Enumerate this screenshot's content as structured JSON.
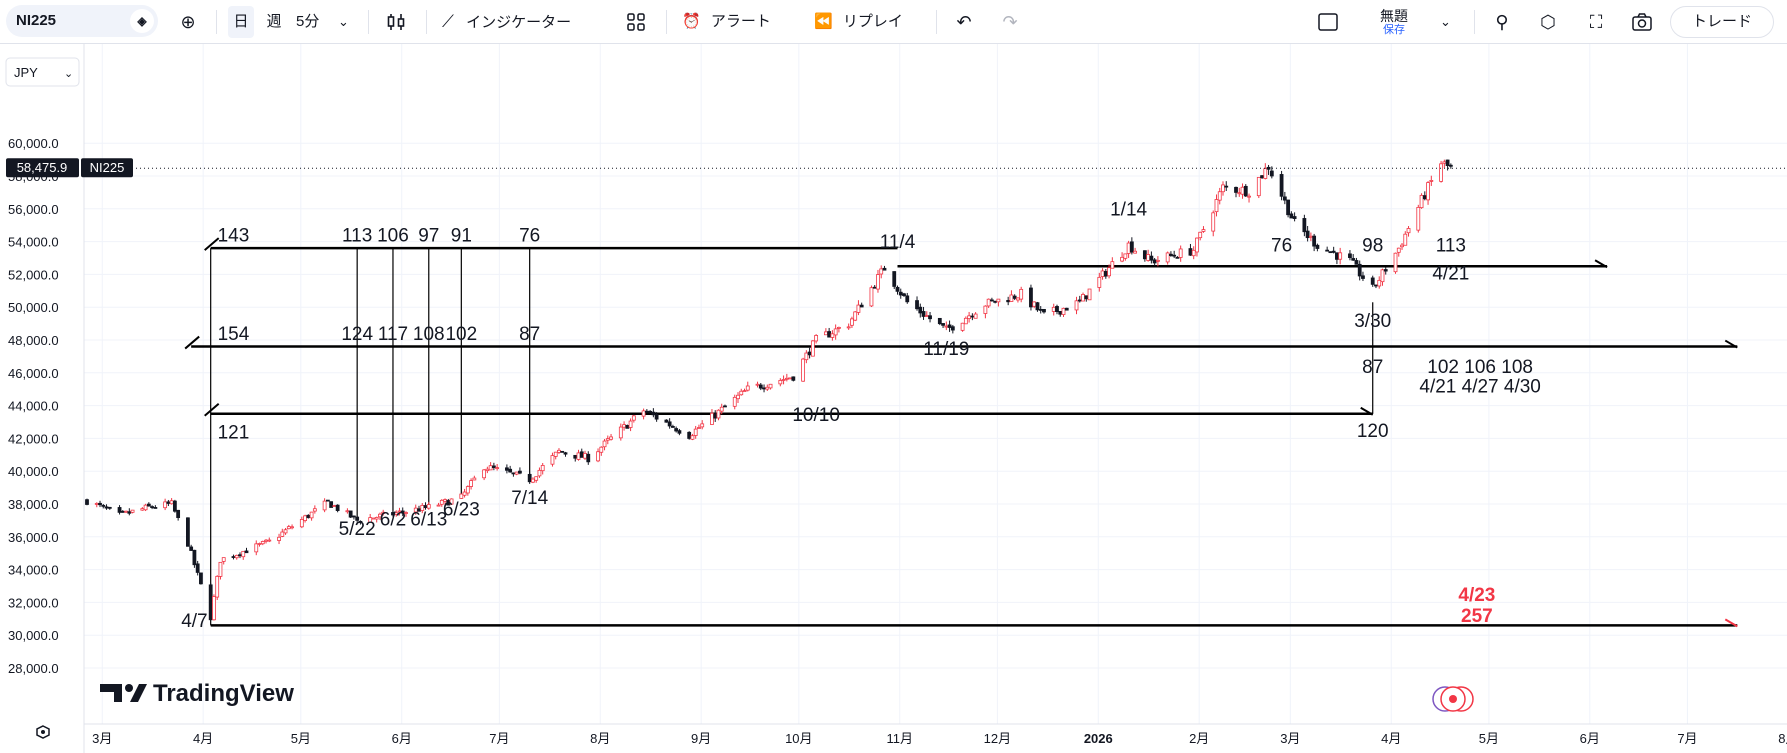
{
  "toolbar": {
    "symbol": "NI225",
    "symbol_icon": "diamond-icon",
    "add_icon": "plus-circle-icon",
    "day": "日",
    "week": "週",
    "interval": "5分",
    "interval_icon": "chevron-down-icon",
    "candle_icon": "candles-icon",
    "indicator_icon": "indicators-icon",
    "indicators": "インジケーター",
    "layout_icon": "grid-icon",
    "alert_icon": "alarm-clock-icon",
    "alert": "アラート",
    "replay_icon": "rewind-icon",
    "replay": "リプレイ",
    "undo_icon": "undo-icon",
    "redo_icon": "redo-icon",
    "layout_box_icon": "square-icon",
    "layout_name": "無題",
    "save": "保存",
    "quick_search_icon": "magnifier-icon",
    "settings_icon": "gear-icon",
    "fullscreen_icon": "fullscreen-icon",
    "snapshot_icon": "camera-icon",
    "trade": "トレード"
  },
  "currency": "JPY",
  "currency_icon": "chevron-down-icon",
  "last_price_label": "58,475.9",
  "last_price_symbol": "NI225",
  "watermark": "TradingView",
  "watermark_icon": "tv-logo-icon",
  "bottom_icon": "gear-icon",
  "colors": {
    "up": "#f23645",
    "down": "#131722",
    "grid": "#f0f3fa",
    "annotation": "#131722",
    "alert": "#f23645"
  },
  "chart_data": {
    "type": "candlestick",
    "symbol": "NI225",
    "currency": "JPY",
    "ylim": [
      28000,
      61000
    ],
    "y_ticks": [
      "28,000.0",
      "30,000.0",
      "32,000.0",
      "34,000.0",
      "36,000.0",
      "38,000.0",
      "40,000.0",
      "42,000.0",
      "44,000.0",
      "46,000.0",
      "48,000.0",
      "50,000.0",
      "52,000.0",
      "54,000.0",
      "56,000.0",
      "58,000.0",
      "60,000.0"
    ],
    "x_ticks": [
      "3月",
      "4月",
      "5月",
      "6月",
      "7月",
      "8月",
      "9月",
      "10月",
      "11月",
      "12月",
      "2026",
      "2月",
      "3月",
      "4月",
      "5月",
      "6月",
      "7月",
      "8月"
    ],
    "last_price": 58475.9,
    "anchors": [
      [
        "2025-02-28",
        38200
      ],
      [
        "2025-03-10",
        37300
      ],
      [
        "2025-03-19",
        37800
      ],
      [
        "2025-03-26",
        38000
      ],
      [
        "2025-03-31",
        35600
      ],
      [
        "2025-04-07",
        31100
      ],
      [
        "2025-04-10",
        34600
      ],
      [
        "2025-04-25",
        35700
      ],
      [
        "2025-05-13",
        38100
      ],
      [
        "2025-05-22",
        37000
      ],
      [
        "2025-06-02",
        37400
      ],
      [
        "2025-06-13",
        37800
      ],
      [
        "2025-06-23",
        38400
      ],
      [
        "2025-06-30",
        40300
      ],
      [
        "2025-07-14",
        39500
      ],
      [
        "2025-07-23",
        41200
      ],
      [
        "2025-08-01",
        40800
      ],
      [
        "2025-08-18",
        43700
      ],
      [
        "2025-09-01",
        42200
      ],
      [
        "2025-09-19",
        45000
      ],
      [
        "2025-10-03",
        45800
      ],
      [
        "2025-10-10",
        48000
      ],
      [
        "2025-10-20",
        49000
      ],
      [
        "2025-10-31",
        52400
      ],
      [
        "2025-11-07",
        50300
      ],
      [
        "2025-11-19",
        48600
      ],
      [
        "2025-12-01",
        50200
      ],
      [
        "2025-12-12",
        50800
      ],
      [
        "2025-12-19",
        49500
      ],
      [
        "2025-12-30",
        50300
      ],
      [
        "2026-01-14",
        53800
      ],
      [
        "2026-01-21",
        52800
      ],
      [
        "2026-02-03",
        53500
      ],
      [
        "2026-02-12",
        57300
      ],
      [
        "2026-02-20",
        57100
      ],
      [
        "2026-02-26",
        58600
      ],
      [
        "2026-03-06",
        55100
      ],
      [
        "2026-03-13",
        53800
      ],
      [
        "2026-03-23",
        52800
      ],
      [
        "2026-03-30",
        51100
      ],
      [
        "2026-04-07",
        53600
      ],
      [
        "2026-04-14",
        56500
      ],
      [
        "2026-04-20",
        58800
      ],
      [
        "2026-04-23",
        58476
      ]
    ],
    "hlines": [
      {
        "price": 53600,
        "from": "2025-04-07",
        "to": "2025-11-04",
        "ray_start": true
      },
      {
        "price": 52500,
        "from": "2025-11-04",
        "to": "2026-06-10",
        "ray_end": true
      },
      {
        "price": 47600,
        "from": "2025-04-01",
        "to": "2026-07-20",
        "ray_start": true,
        "ray_end": true
      },
      {
        "price": 43500,
        "from": "2025-04-07",
        "to": "2026-03-30",
        "ray_start": true,
        "ray_end": true
      },
      {
        "price": 30600,
        "from": "2025-04-07",
        "to": "2026-07-20",
        "ray_end": true,
        "ray_color": "#f23645"
      }
    ],
    "vlines": [
      {
        "date": "2025-04-07",
        "from": 53600,
        "to": 30600
      },
      {
        "date": "2025-05-22",
        "from": 53600,
        "to": 37000
      },
      {
        "date": "2025-06-02",
        "from": 53600,
        "to": 37400
      },
      {
        "date": "2025-06-13",
        "from": 53600,
        "to": 37800
      },
      {
        "date": "2025-06-23",
        "from": 53600,
        "to": 38400
      },
      {
        "date": "2025-07-14",
        "from": 53600,
        "to": 39500
      },
      {
        "date": "2026-03-30",
        "from": 50300,
        "to": 43500
      }
    ],
    "annotations": [
      {
        "text": "143",
        "date": "2025-04-14",
        "price": 54000
      },
      {
        "text": "113",
        "date": "2025-05-22",
        "price": 54000
      },
      {
        "text": "106",
        "date": "2025-06-02",
        "price": 54000
      },
      {
        "text": "97",
        "date": "2025-06-13",
        "price": 54000
      },
      {
        "text": "91",
        "date": "2025-06-23",
        "price": 54000
      },
      {
        "text": "76",
        "date": "2025-07-14",
        "price": 54000
      },
      {
        "text": "11/4",
        "date": "2025-11-04",
        "price": 53600
      },
      {
        "text": "154",
        "date": "2025-04-14",
        "price": 48000
      },
      {
        "text": "124",
        "date": "2025-05-22",
        "price": 48000
      },
      {
        "text": "117",
        "date": "2025-06-02",
        "price": 48000
      },
      {
        "text": "108",
        "date": "2025-06-13",
        "price": 48000
      },
      {
        "text": "102",
        "date": "2025-06-23",
        "price": 48000
      },
      {
        "text": "87",
        "date": "2025-07-14",
        "price": 48000
      },
      {
        "text": "11/19",
        "date": "2025-11-19",
        "price": 47100
      },
      {
        "text": "10/10",
        "date": "2025-10-10",
        "price": 43050
      },
      {
        "text": "121",
        "date": "2025-04-14",
        "price": 42000
      },
      {
        "text": "5/22",
        "date": "2025-05-22",
        "price": 36100
      },
      {
        "text": "6/2",
        "date": "2025-06-02",
        "price": 36700
      },
      {
        "text": "6/13",
        "date": "2025-06-13",
        "price": 36700
      },
      {
        "text": "6/23",
        "date": "2025-06-23",
        "price": 37300
      },
      {
        "text": "7/14",
        "date": "2025-07-14",
        "price": 38000
      },
      {
        "text": "4/7",
        "date": "2025-04-02",
        "price": 30500
      },
      {
        "text": "1/14",
        "date": "2026-01-14",
        "price": 55600
      },
      {
        "text": "76",
        "date": "2026-03-02",
        "price": 53400
      },
      {
        "text": "98",
        "date": "2026-03-30",
        "price": 53400
      },
      {
        "text": "113",
        "date": "2026-04-23",
        "price": 53400
      },
      {
        "text": "4/21",
        "date": "2026-04-23",
        "price": 51700
      },
      {
        "text": "3/30",
        "date": "2026-03-30",
        "price": 48800
      },
      {
        "text": "87",
        "date": "2026-03-30",
        "price": 46000
      },
      {
        "text": "102 106 108",
        "date": "2026-05-02",
        "price": 46000
      },
      {
        "text": "4/21 4/27 4/30",
        "date": "2026-05-02",
        "price": 44800
      },
      {
        "text": "120",
        "date": "2026-03-30",
        "price": 42100
      },
      {
        "text": "4/23",
        "date": "2026-05-01",
        "price": 32100,
        "color": "#f23645"
      },
      {
        "text": "257",
        "date": "2026-05-01",
        "price": 30800,
        "color": "#f23645"
      }
    ]
  }
}
